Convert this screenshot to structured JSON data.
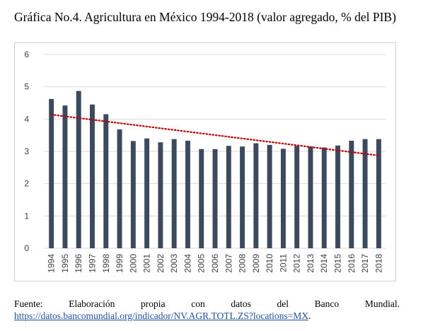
{
  "chart_data": {
    "type": "bar",
    "title": "Gráfica No.4. Agricultura en México 1994-2018 (valor agregado, % del PIB)",
    "categories": [
      "1994",
      "1995",
      "1996",
      "1997",
      "1998",
      "1999",
      "2000",
      "2001",
      "2002",
      "2003",
      "2004",
      "2005",
      "2006",
      "2007",
      "2008",
      "2009",
      "2010",
      "2011",
      "2012",
      "2013",
      "2014",
      "2015",
      "2016",
      "2017",
      "2018"
    ],
    "values": [
      4.62,
      4.42,
      4.87,
      4.45,
      4.15,
      3.68,
      3.32,
      3.4,
      3.28,
      3.38,
      3.33,
      3.07,
      3.07,
      3.17,
      3.15,
      3.25,
      3.2,
      3.08,
      3.17,
      3.15,
      3.12,
      3.18,
      3.33,
      3.38,
      3.38
    ],
    "ylim": [
      0,
      6
    ],
    "yticks": [
      "0",
      "1",
      "2",
      "3",
      "4",
      "5",
      "6"
    ],
    "grid": true,
    "trendline": {
      "type": "linear",
      "style": "dotted",
      "color": "#c00000"
    },
    "bar_color": "#3c4a5d"
  },
  "footer": {
    "words": [
      "Fuente:",
      "Elaboración",
      "propia",
      "con",
      "datos",
      "del",
      "Banco",
      "Mundial."
    ],
    "link": "https://datos.bancomundial.org/indicador/NV.AGR.TOTL.ZS?locations=MX",
    "trailing": "."
  }
}
